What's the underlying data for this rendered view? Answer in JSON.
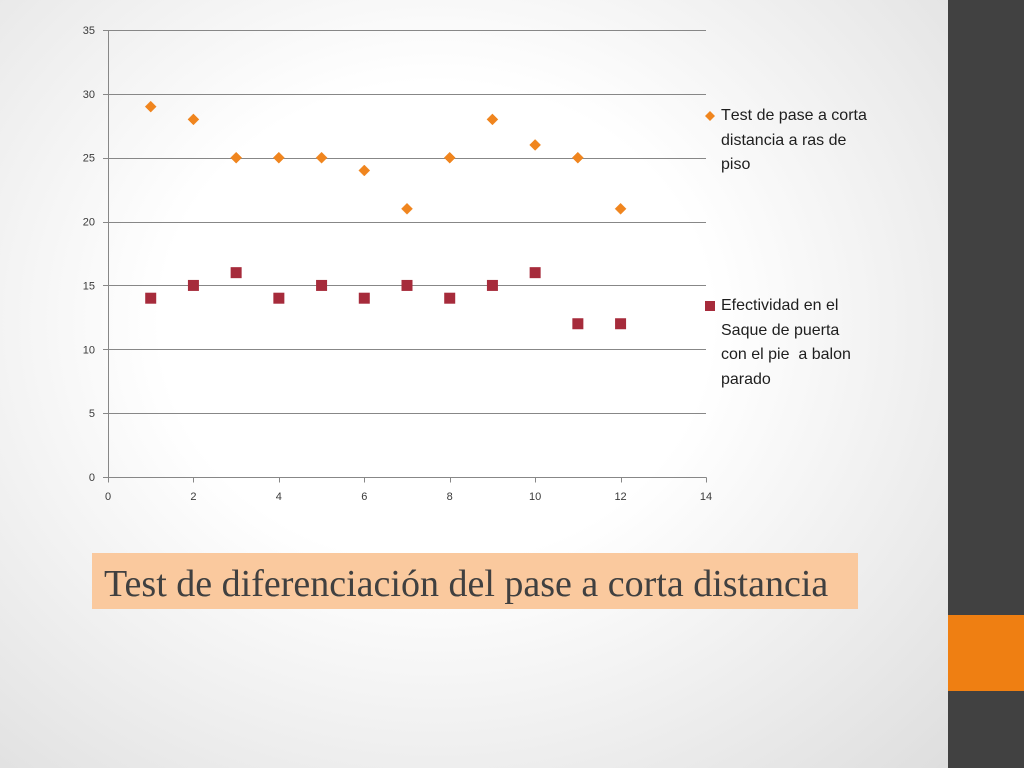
{
  "slide": {
    "title": "Test de diferenciación del pase a corta distancia",
    "theme_colors": {
      "background_center": "#FFFFFF",
      "background_edge": "#DEDEDE",
      "sidebar": "#414141",
      "sidebar_accent": "#EF7F12",
      "title_box": "#FAC99E",
      "title_text": "#404040"
    }
  },
  "chart_data": {
    "type": "scatter",
    "xlim": [
      0,
      14
    ],
    "ylim": [
      0,
      35
    ],
    "x_ticks": [
      0,
      2,
      4,
      6,
      8,
      10,
      12,
      14
    ],
    "y_ticks": [
      0,
      5,
      10,
      15,
      20,
      25,
      30,
      35
    ],
    "grid_y": true,
    "grid_x": false,
    "legend": "right",
    "series": [
      {
        "name": "Test de pase a corta distancia a ras de piso",
        "marker": "diamond",
        "color": "#F0851E",
        "x": [
          1,
          2,
          3,
          4,
          5,
          6,
          7,
          8,
          9,
          10,
          11,
          12
        ],
        "y": [
          29,
          28,
          25,
          25,
          25,
          24,
          21,
          25,
          28,
          26,
          25,
          21
        ]
      },
      {
        "name": "Efectividad en el Saque de puerta con el pie  a balon parado",
        "marker": "square",
        "color": "#A62B3B",
        "x": [
          1,
          2,
          3,
          4,
          5,
          6,
          7,
          8,
          9,
          10,
          11,
          12
        ],
        "y": [
          14,
          15,
          16,
          14,
          15,
          14,
          15,
          14,
          15,
          16,
          12,
          12
        ]
      }
    ]
  }
}
